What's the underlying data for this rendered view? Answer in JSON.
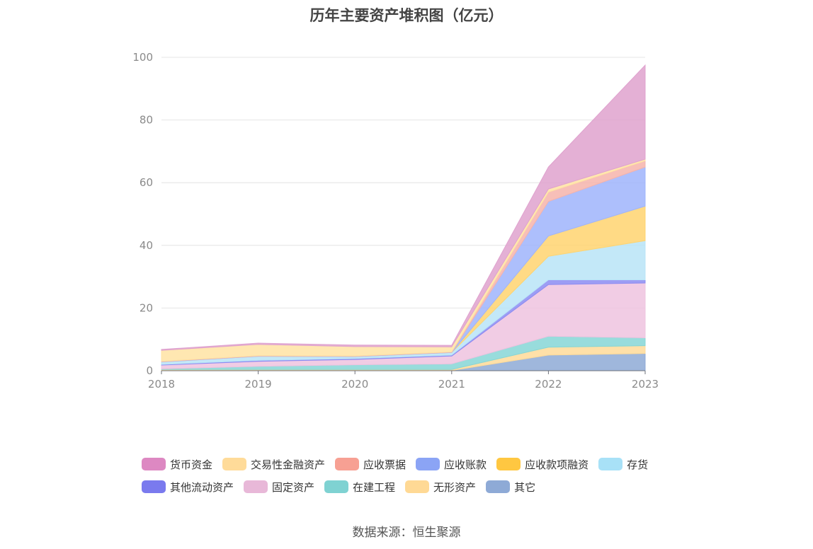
{
  "chart_data": {
    "type": "area",
    "stacked": true,
    "title": "历年主要资产堆积图（亿元）",
    "x": [
      "2018",
      "2019",
      "2020",
      "2021",
      "2022",
      "2023"
    ],
    "yticks": [
      "0",
      "20",
      "40",
      "60",
      "80",
      "100"
    ],
    "ylim": [
      0,
      100
    ],
    "grid": true,
    "legend_position": "bottom",
    "series": [
      {
        "name": "其它",
        "color": "#8eaad6",
        "values": [
          0.1,
          0.1,
          0.1,
          0.1,
          5.0,
          5.5
        ]
      },
      {
        "name": "无形资产",
        "color": "#ffdb99",
        "values": [
          0.3,
          0.3,
          0.3,
          0.3,
          2.5,
          2.5
        ]
      },
      {
        "name": "在建工程",
        "color": "#86d6d6",
        "values": [
          0.2,
          1.0,
          1.5,
          1.8,
          3.5,
          2.5
        ]
      },
      {
        "name": "固定资产",
        "color": "#eec3df",
        "values": [
          1.2,
          1.6,
          1.7,
          2.5,
          16.5,
          17.5
        ]
      },
      {
        "name": "其他流动资产",
        "color": "#8c8cf2",
        "values": [
          0.2,
          0.3,
          0.3,
          0.3,
          1.5,
          1.0
        ]
      },
      {
        "name": "存货",
        "color": "#b9e4f7",
        "values": [
          0.8,
          1.3,
          0.6,
          0.8,
          7.5,
          12.5
        ]
      },
      {
        "name": "应收款项融资",
        "color": "#ffd470",
        "values": [
          0.0,
          0.0,
          0.0,
          0.0,
          6.5,
          11.0
        ]
      },
      {
        "name": "应收账款",
        "color": "#9fb4fb",
        "values": [
          0.1,
          0.1,
          0.1,
          0.1,
          11.0,
          12.5
        ]
      },
      {
        "name": "应收票据",
        "color": "#f6b4ac",
        "values": [
          0.1,
          0.1,
          0.1,
          0.1,
          3.0,
          2.0
        ]
      },
      {
        "name": "交易性金融资产",
        "color": "#ffe3a3",
        "values": [
          3.5,
          3.6,
          3.0,
          1.6,
          1.0,
          0.5
        ]
      },
      {
        "name": "货币资金",
        "color": "#dfa2ce",
        "values": [
          0.3,
          0.4,
          0.5,
          0.5,
          7.0,
          30.0
        ]
      }
    ],
    "legend": [
      [
        "货币资金",
        "交易性金融资产",
        "应收票据",
        "应收账款",
        "应收款项融资",
        "存货"
      ],
      [
        "其他流动资产",
        "固定资产",
        "在建工程",
        "无形资产",
        "其它"
      ]
    ],
    "legend_colors": {
      "货币资金": "#dd88c2",
      "交易性金融资产": "#ffdb99",
      "应收票据": "#f7a093",
      "应收账款": "#8ba4f5",
      "应收款项融资": "#ffc741",
      "存货": "#a8e1f7",
      "其他流动资产": "#7a7aee",
      "固定资产": "#e8b8d8",
      "在建工程": "#7fd2d2",
      "无形资产": "#ffd995",
      "其它": "#8eaad6"
    }
  },
  "source": "数据来源：恒生聚源"
}
